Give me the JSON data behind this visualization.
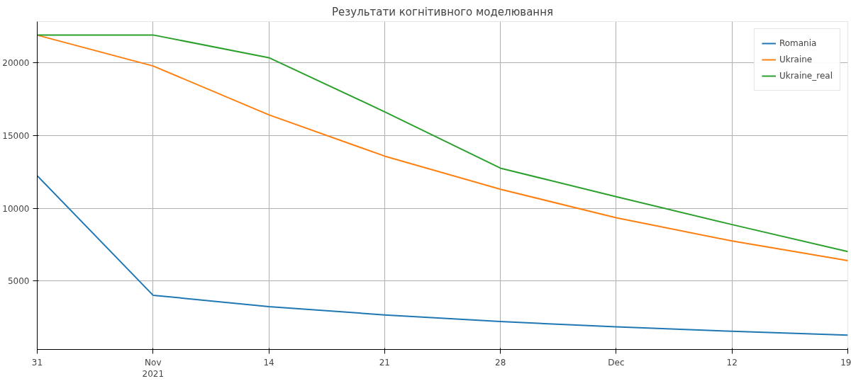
{
  "chart_data": {
    "type": "line",
    "title": "Результати когнітивного моделювання",
    "x": [
      "2021-10-31",
      "2021-11-07",
      "2021-11-14",
      "2021-11-21",
      "2021-11-28",
      "2021-12-05",
      "2021-12-12",
      "2021-12-19"
    ],
    "series": [
      {
        "name": "Romania",
        "color": "#1f77b4",
        "values": [
          12240,
          4020,
          3240,
          2670,
          2210,
          1850,
          1540,
          1280
        ]
      },
      {
        "name": "Ukraine",
        "color": "#ff7f0e",
        "values": [
          21910,
          19790,
          16430,
          13590,
          11310,
          9350,
          7750,
          6400
        ]
      },
      {
        "name": "Ukraine_real",
        "color": "#2ca02c",
        "values": [
          21910,
          21920,
          20360,
          16640,
          12760,
          10800,
          8880,
          7020
        ]
      }
    ],
    "xlim": [
      "2021-10-31",
      "2021-12-19"
    ],
    "xticks": [
      {
        "value": "2021-10-31",
        "label": "31"
      },
      {
        "value": "2021-11-07",
        "label": "Nov\n2021"
      },
      {
        "value": "2021-11-14",
        "label": "14"
      },
      {
        "value": "2021-11-21",
        "label": "21"
      },
      {
        "value": "2021-11-28",
        "label": "28"
      },
      {
        "value": "2021-12-05",
        "label": "Dec"
      },
      {
        "value": "2021-12-12",
        "label": "12"
      },
      {
        "value": "2021-12-19",
        "label": "19"
      }
    ],
    "ylim": [
      290,
      22840
    ],
    "yticks": [
      5000,
      10000,
      15000,
      20000
    ],
    "grid": true,
    "legend": "top right",
    "marker": "none",
    "line_style": "solid"
  }
}
